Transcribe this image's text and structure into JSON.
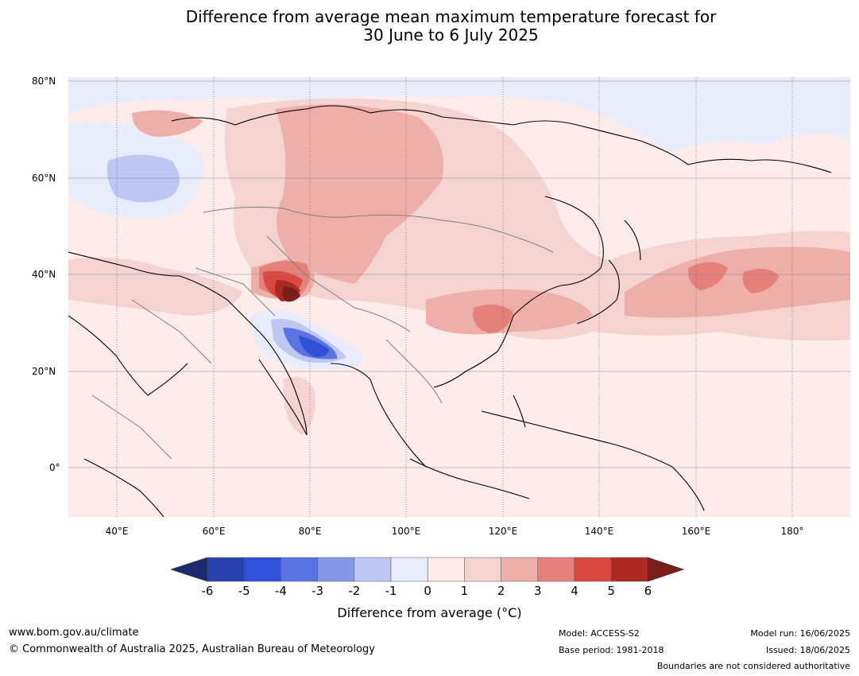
{
  "title_line1": "Difference from average mean maximum temperature forecast for",
  "title_line2": "30 June to 6 July 2025",
  "lat_ticks": [
    "80°N",
    "60°N",
    "40°N",
    "20°N",
    "0°"
  ],
  "lon_ticks": [
    "40°E",
    "60°E",
    "80°E",
    "100°E",
    "120°E",
    "140°E",
    "160°E",
    "180°"
  ],
  "colorbar": {
    "labels": [
      "-6",
      "-5",
      "-4",
      "-3",
      "-2",
      "-1",
      "0",
      "1",
      "2",
      "3",
      "4",
      "5",
      "6"
    ],
    "colors": [
      "#1a2a6c",
      "#283fae",
      "#3050d8",
      "#5a73e0",
      "#8597e8",
      "#bec7f3",
      "#e8ecfb",
      "#fdecea",
      "#f4d3d1",
      "#eeaeaa",
      "#e6807a",
      "#d9473f",
      "#ab2a24",
      "#7a1e1a"
    ],
    "title": "Difference from average (°C)"
  },
  "footer": {
    "url": "www.bom.gov.au/climate",
    "copyright": "© Commonwealth of Australia 2025, Australian Bureau of Meteorology",
    "model": "Model: ACCESS-S2",
    "base_period": "Base period: 1981-2018",
    "model_run": "Model run: 16/06/2025",
    "issued": "Issued: 18/06/2025",
    "disclaimer": "Boundaries are not considered authoritative"
  }
}
